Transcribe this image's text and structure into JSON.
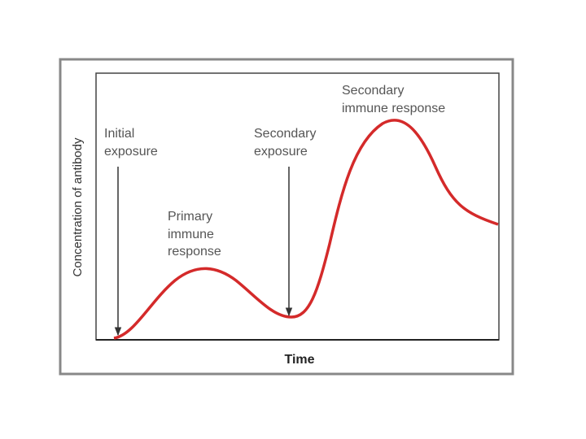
{
  "y_axis_label": "Concentration of antibody",
  "x_axis_label": "Time",
  "annotations": [
    {
      "lines": [
        "Initial",
        "exposure"
      ]
    },
    {
      "lines": [
        "Primary",
        "immune",
        "response"
      ]
    },
    {
      "lines": [
        "Secondary",
        "exposure"
      ]
    },
    {
      "lines": [
        "Secondary",
        "immune response"
      ]
    }
  ]
}
